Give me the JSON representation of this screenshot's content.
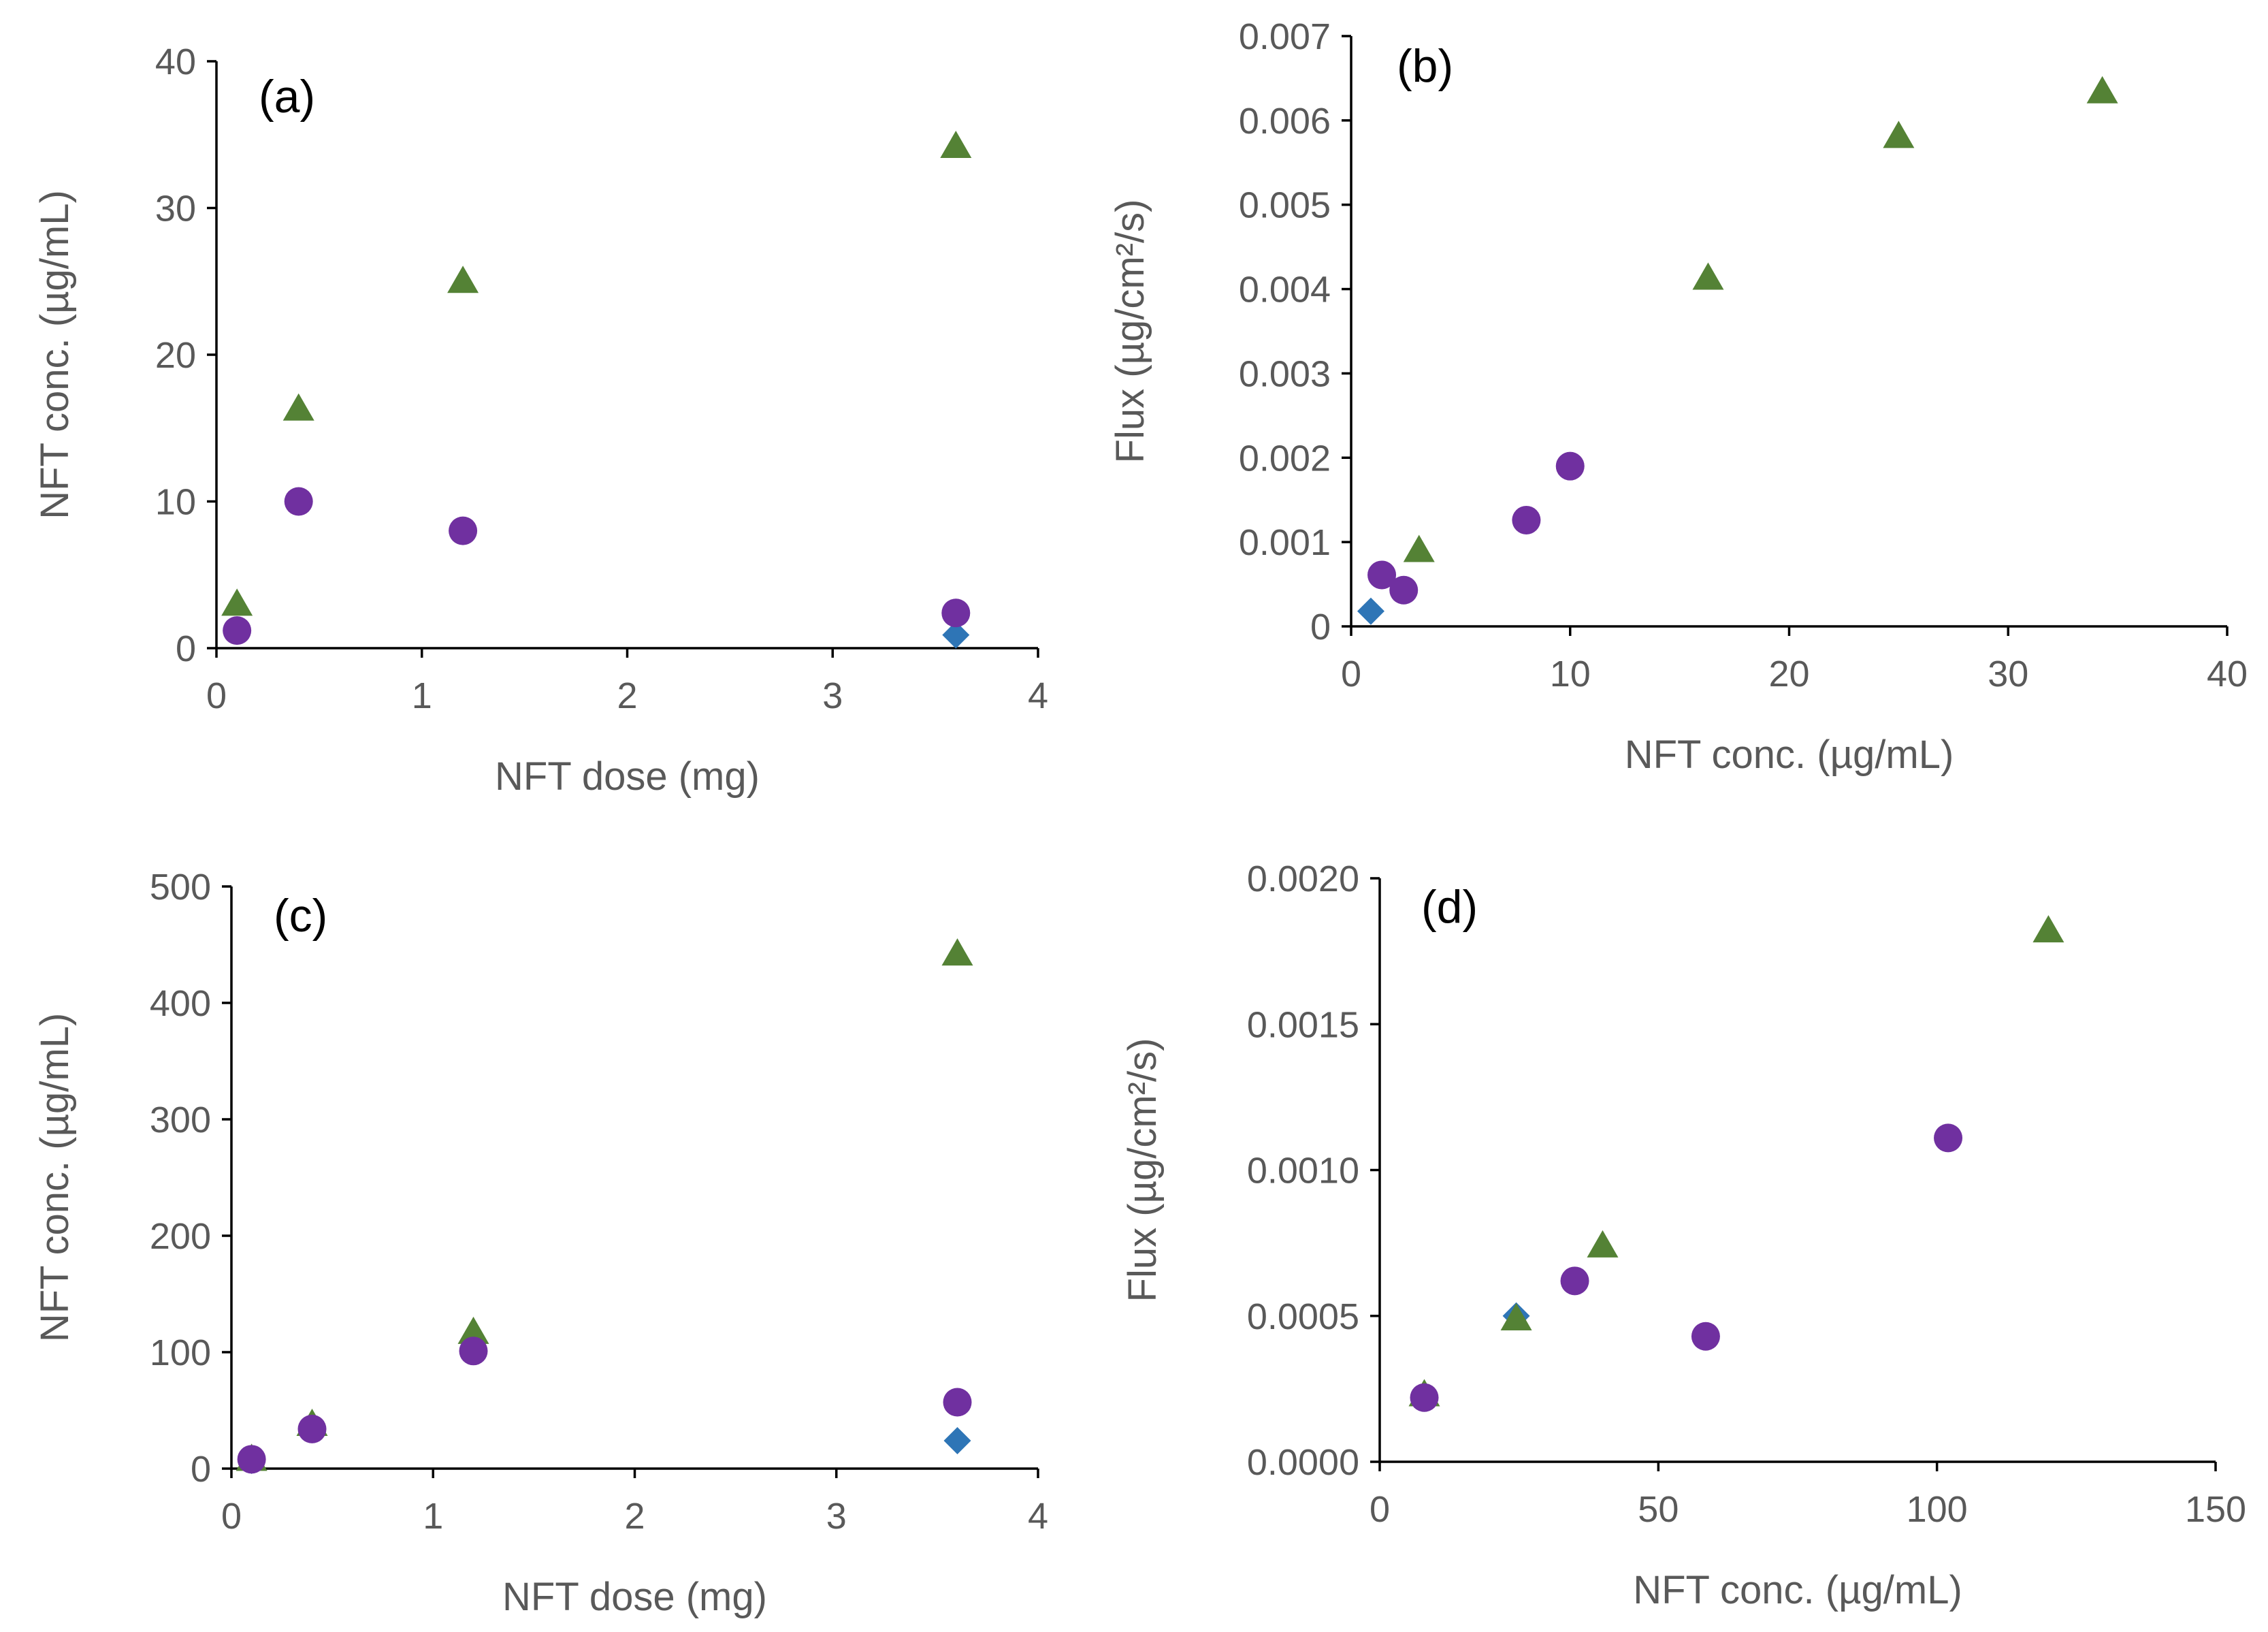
{
  "colors": {
    "series_diamond": "#2E75B6",
    "series_circle": "#7030A0",
    "series_triangle": "#548235",
    "tick_text": "#595959",
    "axis": "#000000"
  },
  "chart_data": [
    {
      "type": "scatter",
      "panel_label": "(a)",
      "xlabel": "NFT dose (mg)",
      "ylabel": "NFT conc. (µg/mL)",
      "xlim": [
        0,
        4
      ],
      "ylim": [
        0,
        40
      ],
      "x_ticks": [
        0,
        1,
        2,
        3,
        4
      ],
      "y_ticks": [
        0,
        10,
        20,
        30,
        40
      ],
      "x_tick_labels": [
        "0",
        "1",
        "2",
        "3",
        "4"
      ],
      "y_tick_labels": [
        "0",
        "10",
        "20",
        "30",
        "40"
      ],
      "grid": false,
      "legend": "none",
      "series": [
        {
          "marker": "diamond",
          "color": "#2E75B6",
          "points": [
            [
              3.6,
              0.9
            ]
          ]
        },
        {
          "marker": "circle",
          "color": "#7030A0",
          "points": [
            [
              0.1,
              1.2
            ],
            [
              0.4,
              10.0
            ],
            [
              1.2,
              8.0
            ],
            [
              3.6,
              2.4
            ]
          ]
        },
        {
          "marker": "triangle",
          "color": "#548235",
          "points": [
            [
              0.1,
              3.0
            ],
            [
              0.4,
              16.3
            ],
            [
              1.2,
              25.0
            ],
            [
              3.6,
              34.2
            ]
          ]
        }
      ]
    },
    {
      "type": "scatter",
      "panel_label": "(b)",
      "xlabel": "NFT conc. (µg/mL)",
      "ylabel": "Flux (µg/cm²/s)",
      "xlim": [
        0,
        40
      ],
      "ylim": [
        0,
        0.007
      ],
      "x_ticks": [
        0,
        10,
        20,
        30,
        40
      ],
      "y_ticks": [
        0,
        0.001,
        0.002,
        0.003,
        0.004,
        0.005,
        0.006,
        0.007
      ],
      "x_tick_labels": [
        "0",
        "10",
        "20",
        "30",
        "40"
      ],
      "y_tick_labels": [
        "0",
        "0.001",
        "0.002",
        "0.003",
        "0.004",
        "0.005",
        "0.006",
        "0.007"
      ],
      "grid": false,
      "legend": "none",
      "series": [
        {
          "marker": "diamond",
          "color": "#2E75B6",
          "points": [
            [
              0.9,
              0.00018
            ]
          ]
        },
        {
          "marker": "circle",
          "color": "#7030A0",
          "points": [
            [
              1.4,
              0.00061
            ],
            [
              2.4,
              0.00043
            ],
            [
              8.0,
              0.00126
            ],
            [
              10.0,
              0.0019
            ]
          ]
        },
        {
          "marker": "triangle",
          "color": "#548235",
          "points": [
            [
              3.1,
              0.0009
            ],
            [
              16.3,
              0.00413
            ],
            [
              25.0,
              0.00581
            ],
            [
              34.3,
              0.00634
            ]
          ]
        }
      ]
    },
    {
      "type": "scatter",
      "panel_label": "(c)",
      "xlabel": "NFT dose (mg)",
      "ylabel": "NFT conc. (µg/mL)",
      "xlim": [
        0,
        4
      ],
      "ylim": [
        0,
        500
      ],
      "x_ticks": [
        0,
        1,
        2,
        3,
        4
      ],
      "y_ticks": [
        0,
        100,
        200,
        300,
        400,
        500
      ],
      "x_tick_labels": [
        "0",
        "1",
        "2",
        "3",
        "4"
      ],
      "y_tick_labels": [
        "0",
        "100",
        "200",
        "300",
        "400",
        "500"
      ],
      "grid": false,
      "legend": "none",
      "series": [
        {
          "marker": "diamond",
          "color": "#2E75B6",
          "points": [
            [
              0.1,
              7
            ],
            [
              3.6,
              24
            ]
          ]
        },
        {
          "marker": "triangle",
          "color": "#548235",
          "points": [
            [
              0.1,
              8
            ],
            [
              0.4,
              38
            ],
            [
              1.2,
              117
            ],
            [
              3.6,
              442
            ]
          ]
        },
        {
          "marker": "circle",
          "color": "#7030A0",
          "points": [
            [
              0.1,
              8
            ],
            [
              0.4,
              34
            ],
            [
              1.2,
              101
            ],
            [
              3.6,
              57
            ]
          ]
        }
      ]
    },
    {
      "type": "scatter",
      "panel_label": "(d)",
      "xlabel": "NFT conc. (µg/mL)",
      "ylabel": "Flux (µg/cm²/s)",
      "xlim": [
        0,
        150
      ],
      "ylim": [
        0,
        0.002
      ],
      "x_ticks": [
        0,
        50,
        100,
        150
      ],
      "y_ticks": [
        0,
        0.0005,
        0.001,
        0.0015,
        0.002
      ],
      "x_tick_labels": [
        "0",
        "50",
        "100",
        "150"
      ],
      "y_tick_labels": [
        "0.0000",
        "0.0005",
        "0.0010",
        "0.0015",
        "0.0020"
      ],
      "grid": false,
      "legend": "none",
      "series": [
        {
          "marker": "diamond",
          "color": "#2E75B6",
          "points": [
            [
              8,
              0.00022
            ],
            [
              24.5,
              0.0005
            ]
          ]
        },
        {
          "marker": "triangle",
          "color": "#548235",
          "points": [
            [
              8,
              0.00023
            ],
            [
              24.5,
              0.00049
            ],
            [
              40,
              0.00074
            ],
            [
              120,
              0.00182
            ]
          ]
        },
        {
          "marker": "circle",
          "color": "#7030A0",
          "points": [
            [
              8,
              0.00022
            ],
            [
              35,
              0.00062
            ],
            [
              58.5,
              0.00043
            ],
            [
              102,
              0.00111
            ]
          ]
        }
      ]
    }
  ]
}
